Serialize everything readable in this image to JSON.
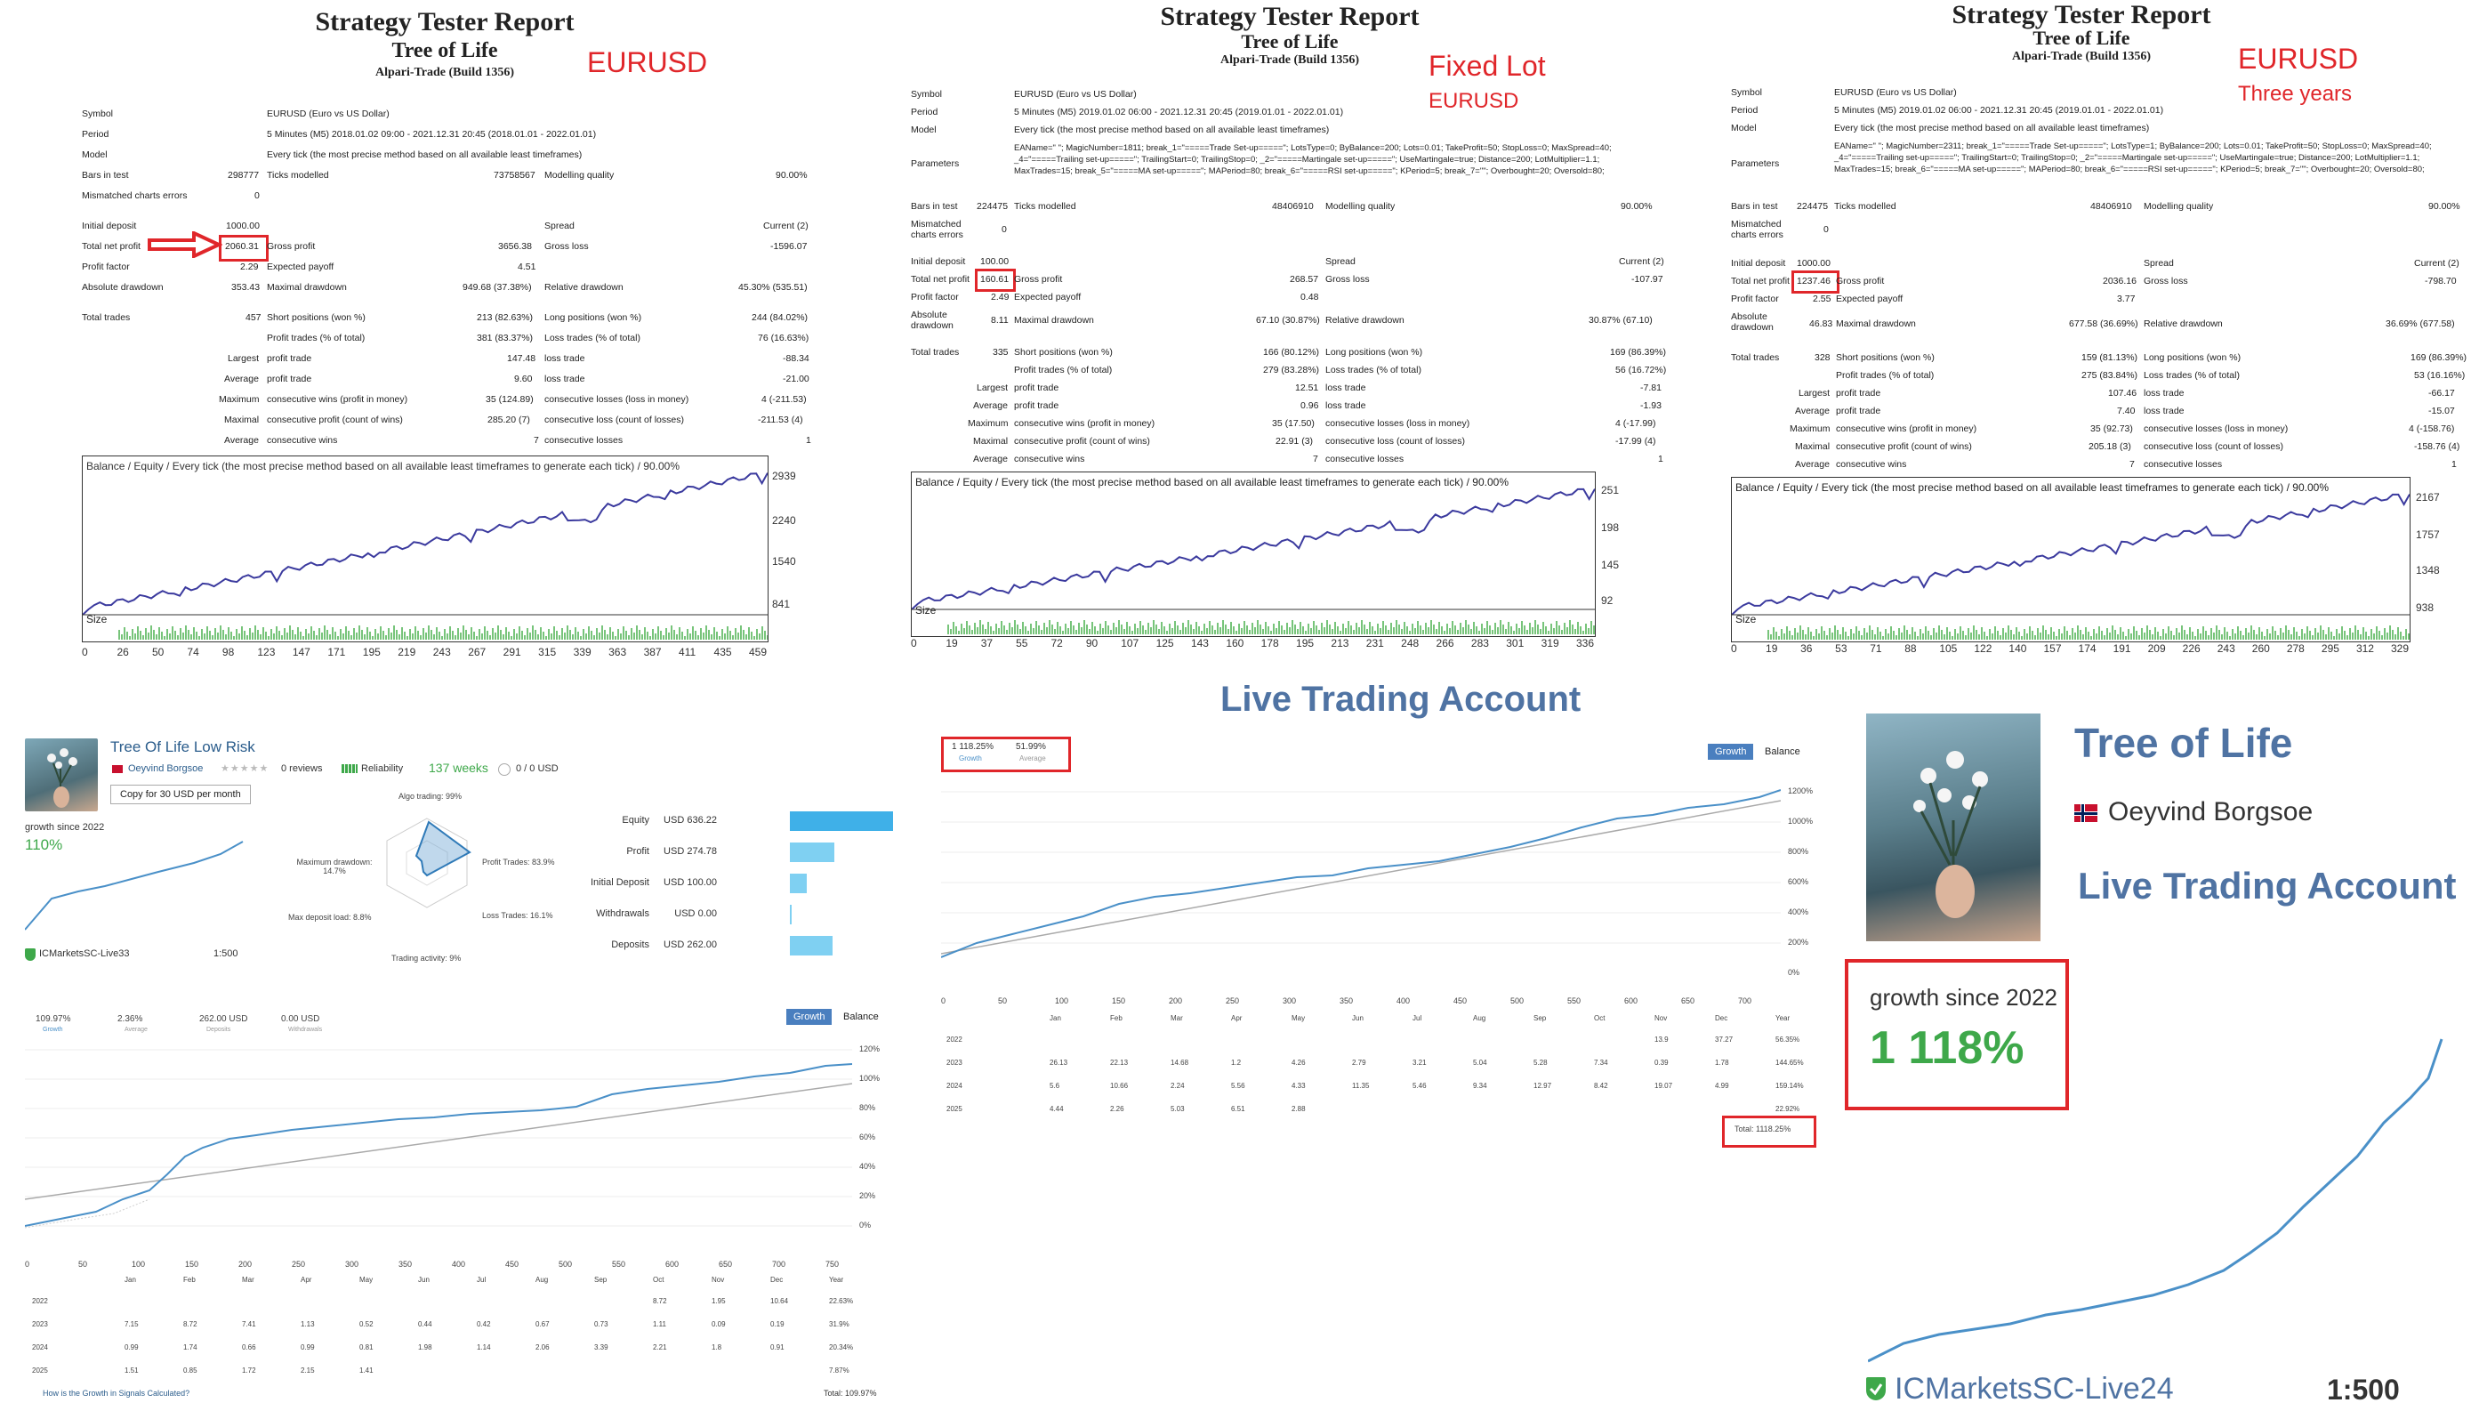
{
  "report1": {
    "title": "Strategy Tester Report",
    "subtitle": "Tree of Life",
    "build": "Alpari-Trade (Build 1356)",
    "annotation": "EURUSD",
    "rows_left": [
      {
        "label": "Symbol",
        "value": "EURUSD (Euro vs US Dollar)"
      },
      {
        "label": "Period",
        "value": "5 Minutes (M5) 2018.01.02 09:00 - 2021.12.31 20:45 (2018.01.01 - 2022.01.01)"
      },
      {
        "label": "Model",
        "value": "Every tick (the most precise method based on all available least timeframes)"
      },
      {
        "label": "Bars in test",
        "value": "298777"
      },
      {
        "label": "Mismatched charts errors",
        "value": "0"
      }
    ],
    "ticks_label": "Ticks modelled",
    "ticks_value": "73758567",
    "quality_label": "Modelling quality",
    "quality_value": "90.00%",
    "initial_deposit": "1000.00",
    "net_profit": "2060.31",
    "profit_factor": "2.29",
    "abs_drawdown": "353.43",
    "gross_profit": "3656.38",
    "expected_payoff": "4.51",
    "max_drawdown": "949.68 (37.38%)",
    "gross_loss": "-1596.07",
    "rel_drawdown": "45.30% (535.51)",
    "current": "Current (2)",
    "total_trades": "457",
    "short_pos": "213 (82.63%)",
    "long_pos": "244 (84.02%)",
    "profit_trades": "381 (83.37%)",
    "loss_trades": "76 (16.63%)",
    "largest_profit": "147.48",
    "largest_loss": "-88.34",
    "avg_profit": "9.60",
    "avg_loss": "-21.00",
    "max_cons_wins": "35 (124.89)",
    "max_cons_losses": "4 (-211.53)",
    "maximal_wins": "285.20 (7)",
    "maximal_losses": "-211.53 (4)",
    "avg_cons_wins": "7",
    "avg_cons_losses": "1",
    "legend": "Balance / Equity / Every tick (the most precise method based on all available least timeframes to generate each tick) / 90.00%",
    "size_label": "Size",
    "y_ticks": [
      "2939",
      "2240",
      "1540",
      "841"
    ],
    "x_ticks": [
      "0",
      "26",
      "50",
      "74",
      "98",
      "123",
      "147",
      "171",
      "195",
      "219",
      "243",
      "267",
      "291",
      "315",
      "339",
      "363",
      "387",
      "411",
      "435",
      "459"
    ]
  },
  "report2": {
    "title": "Strategy Tester Report",
    "subtitle": "Tree of Life",
    "build": "Alpari-Trade (Build 1356)",
    "annotation1": "Fixed Lot",
    "annotation2": "EURUSD",
    "symbol": "EURUSD (Euro vs US Dollar)",
    "period": "5 Minutes (M5) 2019.01.02 06:00 - 2021.12.31 20:45 (2019.01.01 - 2022.01.01)",
    "model": "Every tick (the most precise method based on all available least timeframes)",
    "params": "EAName=\" \"; MagicNumber=1811; break_1=\"=====Trade Set-up=====\"; LotsType=0; ByBalance=200; Lots=0.01; TakeProfit=50; StopLoss=0; MaxSpread=40; _4=\"=====Trailing set-up=====\"; TrailingStart=0; TrailingStop=0; _2=\"=====Martingale set-up=====\"; UseMartingale=true; Distance=200; LotMultiplier=1.1; MaxTrades=15; break_5=\"=====MA set-up=====\"; MAPeriod=80; break_6=\"=====RSI set-up=====\"; KPeriod=5; break_7=\"\"; Overbought=20; Oversold=80;",
    "bars": "224475",
    "ticks": "48406910",
    "quality": "90.00%",
    "initial_deposit": "100.00",
    "net_profit": "160.61",
    "profit_factor": "2.49",
    "abs_drawdown": "8.11",
    "gross_profit": "268.57",
    "expected_payoff": "0.48",
    "max_drawdown": "67.10 (30.87%)",
    "gross_loss": "-107.97",
    "rel_drawdown": "30.87% (67.10)",
    "current": "Current (2)",
    "total_trades": "335",
    "short_pos": "166 (80.12%)",
    "long_pos": "169 (86.39%)",
    "profit_trades": "279 (83.28%)",
    "loss_trades": "56 (16.72%)",
    "largest_profit": "12.51",
    "largest_loss": "-7.81",
    "avg_profit": "0.96",
    "avg_loss": "-1.93",
    "max_cons_wins": "35 (17.50)",
    "max_cons_losses": "4 (-17.99)",
    "maximal_wins": "22.91 (3)",
    "maximal_losses": "-17.99 (4)",
    "avg_cons_wins": "7",
    "avg_cons_losses": "1",
    "legend": "Balance / Equity / Every tick (the most precise method based on all available least timeframes to generate each tick) / 90.00%",
    "size_label": "Size",
    "y_ticks": [
      "251",
      "198",
      "145",
      "92"
    ],
    "x_ticks": [
      "0",
      "19",
      "37",
      "55",
      "72",
      "90",
      "107",
      "125",
      "143",
      "160",
      "178",
      "195",
      "213",
      "231",
      "248",
      "266",
      "283",
      "301",
      "319",
      "336"
    ]
  },
  "report3": {
    "title": "Strategy Tester Report",
    "subtitle": "Tree of Life",
    "build": "Alpari-Trade (Build 1356)",
    "annotation1": "EURUSD",
    "annotation2": "Three years",
    "symbol": "EURUSD (Euro vs US Dollar)",
    "period": "5 Minutes (M5) 2019.01.02 06:00 - 2021.12.31 20:45 (2019.01.01 - 2022.01.01)",
    "model": "Every tick (the most precise method based on all available least timeframes)",
    "params": "EAName=\" \"; MagicNumber=2311; break_1=\"=====Trade Set-up=====\"; LotsType=1; ByBalance=200; Lots=0.01; TakeProfit=50; StopLoss=0; MaxSpread=40; _4=\"=====Trailing set-up=====\"; TrailingStart=0; TrailingStop=0; _2=\"=====Martingale set-up=====\"; UseMartingale=true; Distance=200; LotMultiplier=1.1; MaxTrades=15; break_6=\"=====MA set-up=====\"; MAPeriod=80; break_6=\"=====RSI set-up=====\"; KPeriod=5; break_7=\"\"; Overbought=20; Oversold=80;",
    "bars": "224475",
    "ticks": "48406910",
    "quality": "90.00%",
    "initial_deposit": "1000.00",
    "net_profit": "1237.46",
    "profit_factor": "2.55",
    "abs_drawdown": "46.83",
    "gross_profit": "2036.16",
    "expected_payoff": "3.77",
    "max_drawdown": "677.58 (36.69%)",
    "gross_loss": "-798.70",
    "rel_drawdown": "36.69% (677.58)",
    "current": "Current (2)",
    "total_trades": "328",
    "short_pos": "159 (81.13%)",
    "long_pos": "169 (86.39%)",
    "profit_trades": "275 (83.84%)",
    "loss_trades": "53 (16.16%)",
    "largest_profit": "107.46",
    "largest_loss": "-66.17",
    "avg_profit": "7.40",
    "avg_loss": "-15.07",
    "max_cons_wins": "35 (92.73)",
    "max_cons_losses": "4 (-158.76)",
    "maximal_wins": "205.18 (3)",
    "maximal_losses": "-158.76 (4)",
    "avg_cons_wins": "7",
    "avg_cons_losses": "1",
    "legend": "Balance / Equity / Every tick (the most precise method based on all available least timeframes to generate each tick) / 90.00%",
    "size_label": "Size",
    "y_ticks": [
      "2167",
      "1757",
      "1348",
      "938"
    ],
    "x_ticks": [
      "0",
      "19",
      "36",
      "53",
      "71",
      "88",
      "105",
      "122",
      "140",
      "157",
      "174",
      "191",
      "209",
      "226",
      "243",
      "260",
      "278",
      "295",
      "312",
      "329"
    ]
  },
  "labels": {
    "symbol": "Symbol",
    "period": "Period",
    "model": "Model",
    "parameters": "Parameters",
    "bars": "Bars in test",
    "ticks": "Ticks modelled",
    "quality": "Modelling quality",
    "mismatched": "Mismatched charts errors",
    "initial": "Initial deposit",
    "spread": "Spread",
    "net": "Total net profit",
    "gross_profit": "Gross profit",
    "gross_loss": "Gross loss",
    "pf": "Profit factor",
    "ep": "Expected payoff",
    "absdd": "Absolute drawdown",
    "maxdd": "Maximal drawdown",
    "reldd": "Relative drawdown",
    "total": "Total trades",
    "short": "Short positions (won %)",
    "long": "Long positions (won %)",
    "ptrades": "Profit trades (% of total)",
    "ltrades": "Loss trades (% of total)",
    "largest": "Largest",
    "average": "Average",
    "maximum": "Maximum",
    "maximal": "Maximal",
    "profit_trade": "profit trade",
    "loss_trade": "loss trade",
    "cwins_money": "consecutive wins (profit in money)",
    "closses_money": "consecutive losses (loss in money)",
    "cprofit_count": "consecutive profit (count of wins)",
    "closs_count": "consecutive loss (count of losses)",
    "cwins": "consecutive wins",
    "closses": "consecutive losses",
    "zero": "0"
  },
  "signal": {
    "name": "Tree Of Life Low Risk",
    "author": "Oeyvind Borgsoe",
    "reviews": "0 reviews",
    "reliability": "Reliability",
    "weeks": "137 weeks",
    "subscribers": "0 / 0 USD",
    "copy_button": "Copy for 30 USD per month",
    "growth_since": "growth since 2022",
    "growth_value": "110%",
    "broker": "ICMarketsSC-Live33",
    "leverage": "1:500",
    "radar": {
      "algo": "Algo trading: 99%",
      "profit_trades": "Profit Trades: 83.9%",
      "loss_trades": "Loss Trades: 16.1%",
      "activity": "Trading activity: 9%",
      "max_deposit": "Max deposit load: 8.8%",
      "max_dd": "Maximum drawdown: 14.7%"
    },
    "bars": [
      {
        "label": "Equity",
        "value": "636.22 USD",
        "fraction": 1.0
      },
      {
        "label": "Profit",
        "value": "274.78 USD",
        "fraction": 0.43
      },
      {
        "label": "Initial Deposit",
        "value": "100.00 USD",
        "fraction": 0.16
      },
      {
        "label": "Withdrawals",
        "value": "0.00 USD",
        "fraction": 0.0
      },
      {
        "label": "Deposits",
        "value": "262.00 USD",
        "fraction": 0.41
      }
    ],
    "summary": [
      {
        "value": "109.97%",
        "label": "Growth"
      },
      {
        "value": "2.36%",
        "label": "Average"
      },
      {
        "value": "262.00 USD",
        "label": "Deposits"
      },
      {
        "value": "0.00 USD",
        "label": "Withdrawals"
      }
    ],
    "tab_growth": "Growth",
    "tab_balance": "Balance",
    "y_ticks": [
      "120%",
      "100%",
      "80%",
      "60%",
      "40%",
      "20%",
      "0%"
    ],
    "x_ticks": [
      "0",
      "50",
      "100",
      "150",
      "200",
      "250",
      "300",
      "350",
      "400",
      "450",
      "500",
      "550",
      "600",
      "650",
      "700",
      "750"
    ],
    "months": [
      "Jan",
      "Feb",
      "Mar",
      "Apr",
      "May",
      "Jun",
      "Jul",
      "Aug",
      "Sep",
      "Oct",
      "Nov",
      "Dec",
      "Year"
    ],
    "table": [
      [
        "2022",
        "",
        "",
        "",
        "",
        "",
        "",
        "",
        "",
        "",
        "8.72",
        "1.95",
        "10.64",
        "22.63%"
      ],
      [
        "2023",
        "7.15",
        "8.72",
        "7.41",
        "1.13",
        "0.52",
        "0.44",
        "0.42",
        "0.67",
        "0.73",
        "1.11",
        "0.09",
        "0.19",
        "31.9%"
      ],
      [
        "2024",
        "0.99",
        "1.74",
        "0.66",
        "0.99",
        "0.81",
        "1.98",
        "1.14",
        "2.06",
        "3.39",
        "2.21",
        "1.8",
        "0.91",
        "20.34%"
      ],
      [
        "2025",
        "1.51",
        "0.85",
        "1.72",
        "2.15",
        "1.41",
        "",
        "",
        "",
        "",
        "",
        "",
        "",
        "7.87%"
      ]
    ],
    "footer_link": "How is the Growth in Signals Calculated?",
    "total": "Total: 109.97%"
  },
  "live": {
    "title": "Live Trading Account",
    "growth_value": "1 118.25%",
    "growth_label": "Growth",
    "avg_value": "51.99%",
    "avg_label": "Average",
    "tab_growth": "Growth",
    "tab_balance": "Balance",
    "y_ticks": [
      "1200%",
      "1000%",
      "800%",
      "600%",
      "400%",
      "200%",
      "0%"
    ],
    "x_ticks": [
      "0",
      "50",
      "100",
      "150",
      "200",
      "250",
      "300",
      "350",
      "400",
      "450",
      "500",
      "550",
      "600",
      "650",
      "700"
    ],
    "months": [
      "Jan",
      "Feb",
      "Mar",
      "Apr",
      "May",
      "Jun",
      "Jul",
      "Aug",
      "Sep",
      "Oct",
      "Nov",
      "Dec",
      "Year"
    ],
    "table": [
      [
        "2022",
        "",
        "",
        "",
        "",
        "",
        "",
        "",
        "",
        "",
        "",
        "13.9",
        "37.27",
        "56.35%"
      ],
      [
        "2023",
        "26.13",
        "22.13",
        "14.68",
        "1.2",
        "4.26",
        "2.79",
        "3.21",
        "5.04",
        "5.28",
        "7.34",
        "0.39",
        "1.78",
        "144.65%"
      ],
      [
        "2024",
        "5.6",
        "10.66",
        "2.24",
        "5.56",
        "4.33",
        "11.35",
        "5.46",
        "9.34",
        "12.97",
        "8.42",
        "19.07",
        "4.99",
        "159.14%"
      ],
      [
        "2025",
        "4.44",
        "2.26",
        "5.03",
        "6.51",
        "2.88",
        "",
        "",
        "",
        "",
        "",
        "",
        "",
        "22.92%"
      ]
    ],
    "total": "Total: 1118.25%"
  },
  "promo": {
    "name": "Tree of Life",
    "author": "Oeyvind Borgsoe",
    "subtitle": "Live Trading Account",
    "growth_since": "growth since 2022",
    "growth_value": "1 118%",
    "broker": "ICMarketsSC-Live24",
    "leverage": "1:500"
  },
  "colors": {
    "accent_red": "#e0262a",
    "balance_line": "#3b3a9e",
    "bar_green": "#77c47a",
    "signal_blue": "#4a90c8",
    "live_title": "#4f73a3",
    "bar_blue": "#3fb0e8"
  }
}
